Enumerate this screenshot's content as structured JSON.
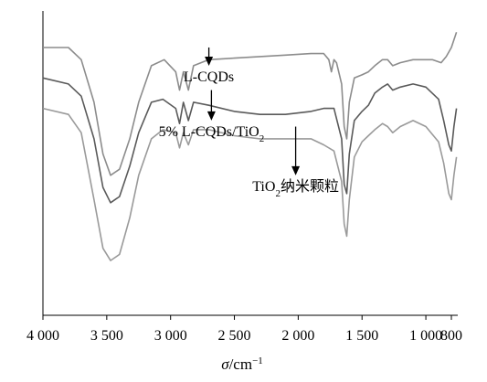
{
  "chart_data": {
    "type": "line",
    "title": "",
    "xlabel_symbol": "σ",
    "xlabel_unit": "/cm",
    "xlabel_exp": "−1",
    "ylabel": "",
    "xlim": [
      4000,
      750
    ],
    "x_reversed": true,
    "x_ticks": [
      4000,
      3500,
      3000,
      2500,
      2000,
      1500,
      1000,
      800
    ],
    "x_tick_labels": [
      "4 000",
      "3 500",
      "3 000",
      "2 500",
      "2 000",
      "1 500",
      "1 000",
      "800"
    ],
    "ylim": [
      0,
      100
    ],
    "grid": false,
    "legend": "none",
    "series": [
      {
        "id": "s1",
        "color": "#8c8c8c",
        "points": [
          [
            4000,
            88
          ],
          [
            3800,
            88
          ],
          [
            3700,
            84
          ],
          [
            3600,
            70
          ],
          [
            3530,
            53
          ],
          [
            3470,
            46
          ],
          [
            3400,
            48
          ],
          [
            3320,
            58
          ],
          [
            3250,
            70
          ],
          [
            3150,
            82
          ],
          [
            3050,
            84
          ],
          [
            2960,
            80
          ],
          [
            2930,
            74
          ],
          [
            2900,
            80
          ],
          [
            2860,
            74
          ],
          [
            2820,
            82
          ],
          [
            2700,
            84
          ],
          [
            2500,
            84.5
          ],
          [
            2300,
            85
          ],
          [
            2100,
            85.5
          ],
          [
            1900,
            86
          ],
          [
            1800,
            86
          ],
          [
            1760,
            84
          ],
          [
            1740,
            80
          ],
          [
            1720,
            84
          ],
          [
            1700,
            83
          ],
          [
            1660,
            76
          ],
          [
            1640,
            62
          ],
          [
            1620,
            58
          ],
          [
            1600,
            70
          ],
          [
            1560,
            78
          ],
          [
            1500,
            79
          ],
          [
            1450,
            80
          ],
          [
            1400,
            82
          ],
          [
            1340,
            84
          ],
          [
            1300,
            84
          ],
          [
            1260,
            82
          ],
          [
            1200,
            83
          ],
          [
            1100,
            84
          ],
          [
            1000,
            84
          ],
          [
            950,
            84
          ],
          [
            880,
            83
          ],
          [
            840,
            85
          ],
          [
            800,
            88
          ],
          [
            760,
            93
          ]
        ]
      },
      {
        "id": "s2",
        "color": "#5a5a5a",
        "points": [
          [
            4000,
            78
          ],
          [
            3800,
            76
          ],
          [
            3700,
            72
          ],
          [
            3600,
            58
          ],
          [
            3530,
            42
          ],
          [
            3470,
            37
          ],
          [
            3400,
            39
          ],
          [
            3320,
            49
          ],
          [
            3250,
            60
          ],
          [
            3150,
            70
          ],
          [
            3060,
            71
          ],
          [
            2960,
            68
          ],
          [
            2930,
            63
          ],
          [
            2900,
            70
          ],
          [
            2860,
            64
          ],
          [
            2820,
            70
          ],
          [
            2700,
            69
          ],
          [
            2500,
            67
          ],
          [
            2300,
            66
          ],
          [
            2100,
            66
          ],
          [
            1900,
            67
          ],
          [
            1800,
            68
          ],
          [
            1720,
            68
          ],
          [
            1660,
            58
          ],
          [
            1640,
            43
          ],
          [
            1620,
            40
          ],
          [
            1600,
            53
          ],
          [
            1560,
            64
          ],
          [
            1500,
            67
          ],
          [
            1450,
            69
          ],
          [
            1400,
            73
          ],
          [
            1340,
            75
          ],
          [
            1300,
            76
          ],
          [
            1260,
            74
          ],
          [
            1200,
            75
          ],
          [
            1100,
            76
          ],
          [
            1000,
            75
          ],
          [
            900,
            71
          ],
          [
            860,
            64
          ],
          [
            820,
            56
          ],
          [
            800,
            54
          ],
          [
            780,
            62
          ],
          [
            760,
            68
          ]
        ]
      },
      {
        "id": "s3",
        "color": "#9a9a9a",
        "points": [
          [
            4000,
            68
          ],
          [
            3800,
            66
          ],
          [
            3700,
            60
          ],
          [
            3600,
            38
          ],
          [
            3530,
            22
          ],
          [
            3470,
            18
          ],
          [
            3400,
            20
          ],
          [
            3320,
            32
          ],
          [
            3250,
            46
          ],
          [
            3150,
            58
          ],
          [
            3060,
            61
          ],
          [
            2960,
            60
          ],
          [
            2930,
            55
          ],
          [
            2900,
            60
          ],
          [
            2860,
            56
          ],
          [
            2820,
            61
          ],
          [
            2700,
            61
          ],
          [
            2500,
            59
          ],
          [
            2300,
            58
          ],
          [
            2100,
            58
          ],
          [
            1900,
            58
          ],
          [
            1800,
            56
          ],
          [
            1720,
            54
          ],
          [
            1660,
            44
          ],
          [
            1640,
            30
          ],
          [
            1620,
            26
          ],
          [
            1600,
            38
          ],
          [
            1560,
            52
          ],
          [
            1500,
            57
          ],
          [
            1450,
            59
          ],
          [
            1400,
            61
          ],
          [
            1340,
            63
          ],
          [
            1300,
            62
          ],
          [
            1260,
            60
          ],
          [
            1200,
            62
          ],
          [
            1100,
            64
          ],
          [
            1000,
            62
          ],
          [
            900,
            57
          ],
          [
            860,
            50
          ],
          [
            820,
            40
          ],
          [
            800,
            38
          ],
          [
            780,
            46
          ],
          [
            760,
            52
          ]
        ]
      }
    ],
    "annotations": [
      {
        "id": "a1",
        "label": "L-CQDs",
        "sub": "",
        "tail": "",
        "x": 2700,
        "y_from": 88,
        "y_to": 82
      },
      {
        "id": "a2",
        "label": "5% L-CQDs/TiO",
        "sub": "2",
        "tail": "",
        "x": 2680,
        "y_from": 74,
        "y_to": 64
      },
      {
        "id": "a3",
        "label": "TiO",
        "sub": "2",
        "tail": "纳米颗粒",
        "x": 2020,
        "y_from": 62,
        "y_to": 46
      }
    ]
  }
}
